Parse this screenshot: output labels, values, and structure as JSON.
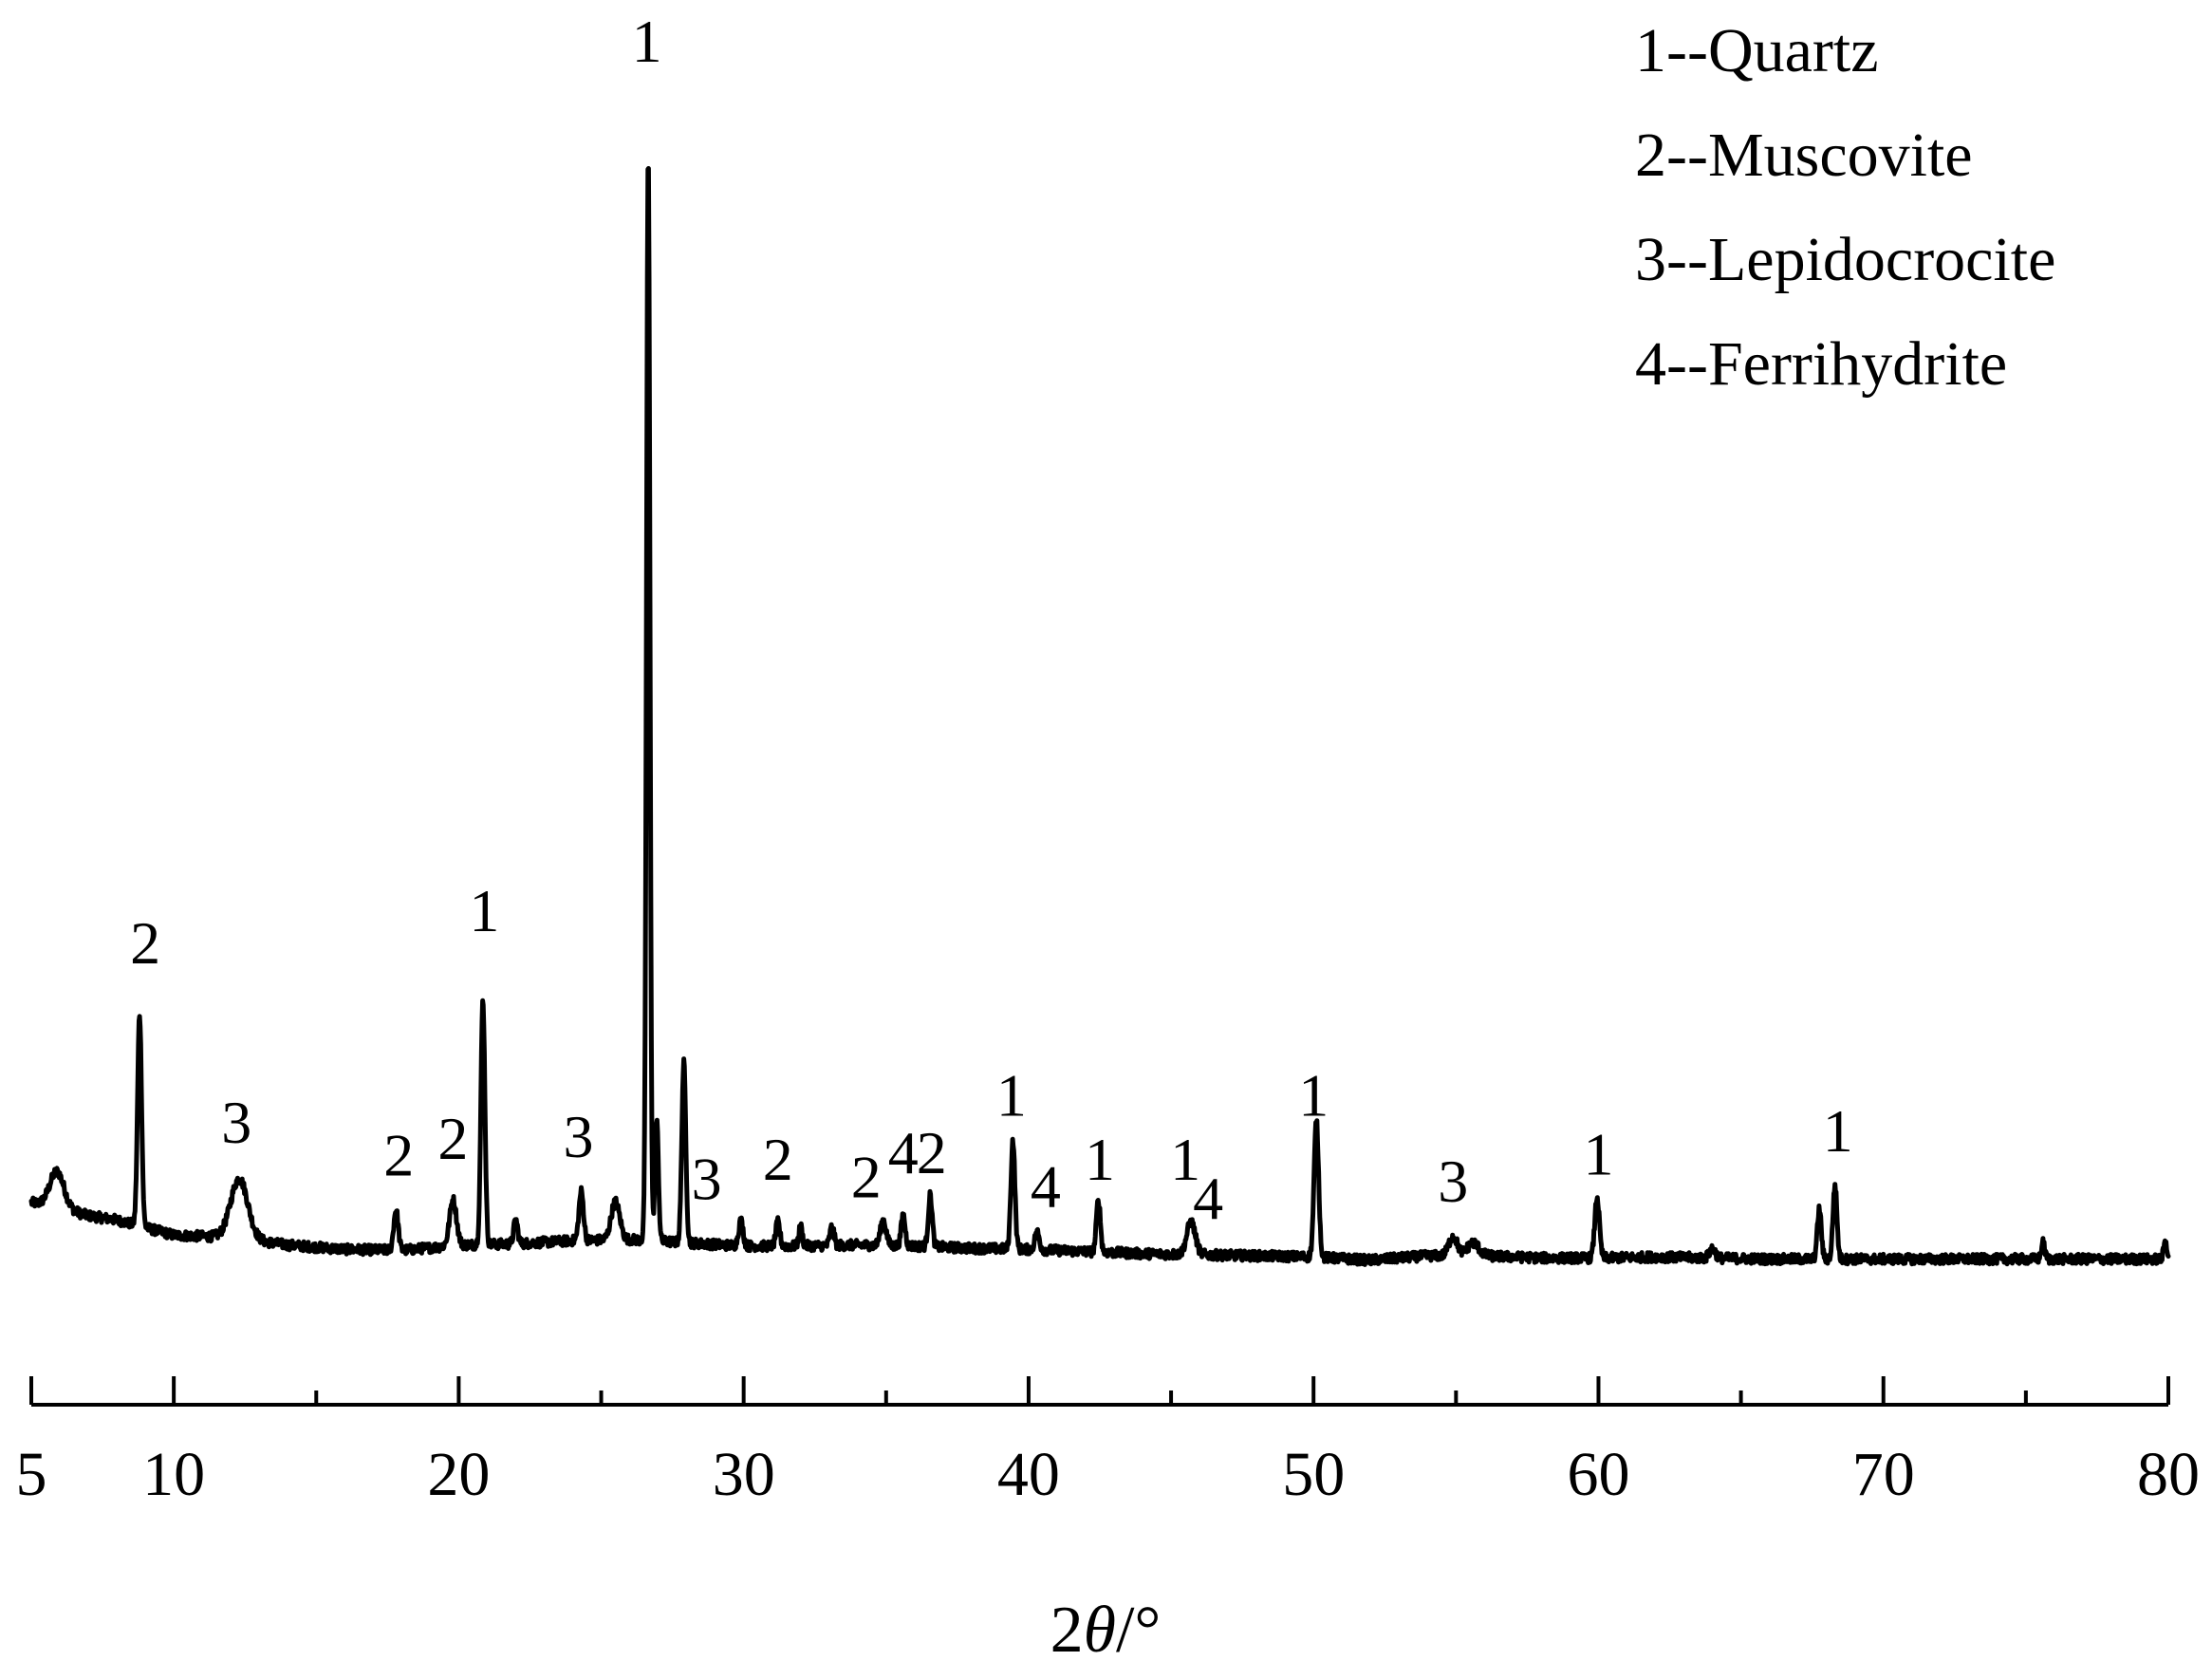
{
  "chart_data": {
    "type": "line",
    "title": "",
    "xlabel_prefix": "2",
    "xlabel_symbol": "θ",
    "xlabel_unit": "/°",
    "ylabel": "",
    "xlim": [
      5,
      80
    ],
    "ylim": [
      0,
      100
    ],
    "x_ticks_major": [
      "5",
      "10",
      "20",
      "30",
      "40",
      "50",
      "60",
      "70",
      "80"
    ],
    "x_tick_values": [
      5,
      10,
      20,
      30,
      40,
      50,
      60,
      70,
      80
    ],
    "legend": [
      "1--Quartz",
      "2--Muscovite",
      "3--Lepidocrocite",
      "4--Ferrihydrite"
    ],
    "legend_position": "top-right",
    "grid": false,
    "series_color": "#000000",
    "baseline": [
      [
        5,
        5.5
      ],
      [
        6,
        5.0
      ],
      [
        7,
        4.3
      ],
      [
        8,
        3.9
      ],
      [
        9,
        3.2
      ],
      [
        10,
        2.5
      ],
      [
        12,
        2.3
      ],
      [
        14,
        1.6
      ],
      [
        16,
        1.2
      ],
      [
        18,
        1.1
      ],
      [
        20,
        1.6
      ],
      [
        22,
        1.7
      ],
      [
        24,
        2.0
      ],
      [
        26,
        2.1
      ],
      [
        28,
        1.8
      ],
      [
        30,
        1.5
      ],
      [
        32,
        1.5
      ],
      [
        34,
        1.6
      ],
      [
        36,
        1.5
      ],
      [
        38,
        1.3
      ],
      [
        40,
        1.2
      ],
      [
        42,
        1.0
      ],
      [
        44,
        0.8
      ],
      [
        46,
        0.7
      ],
      [
        48,
        0.6
      ],
      [
        50,
        0.5
      ],
      [
        52,
        0.2
      ],
      [
        54,
        0.6
      ],
      [
        56,
        0.6
      ],
      [
        58,
        0.4
      ],
      [
        60,
        0.4
      ],
      [
        62,
        0.5
      ],
      [
        64,
        0.4
      ],
      [
        66,
        0.3
      ],
      [
        68,
        0.3
      ],
      [
        70,
        0.3
      ],
      [
        72,
        0.3
      ],
      [
        74,
        0.3
      ],
      [
        76,
        0.3
      ],
      [
        78,
        0.3
      ],
      [
        80,
        0.3
      ]
    ],
    "peaks": [
      {
        "x": 5.9,
        "h": 3.3,
        "w": 0.25
      },
      {
        "x": 8.8,
        "h": 19.5,
        "w": 0.07
      },
      {
        "x": 12.3,
        "h": 5.5,
        "w": 0.3
      },
      {
        "x": 17.8,
        "h": 3.7,
        "w": 0.08
      },
      {
        "x": 19.8,
        "h": 4.2,
        "w": 0.12
      },
      {
        "x": 20.85,
        "h": 22.5,
        "w": 0.07
      },
      {
        "x": 22.0,
        "h": 2.2,
        "w": 0.07
      },
      {
        "x": 24.3,
        "h": 4.5,
        "w": 0.08
      },
      {
        "x": 25.5,
        "h": 3.5,
        "w": 0.15
      },
      {
        "x": 26.65,
        "h": 100.0,
        "w": 0.06
      },
      {
        "x": 26.95,
        "h": 11.0,
        "w": 0.06
      },
      {
        "x": 27.9,
        "h": 16.5,
        "w": 0.07
      },
      {
        "x": 29.9,
        "h": 2.3,
        "w": 0.08
      },
      {
        "x": 31.2,
        "h": 2.2,
        "w": 0.07
      },
      {
        "x": 32.0,
        "h": 1.8,
        "w": 0.06
      },
      {
        "x": 33.1,
        "h": 1.7,
        "w": 0.07
      },
      {
        "x": 34.9,
        "h": 2.3,
        "w": 0.1
      },
      {
        "x": 35.6,
        "h": 2.8,
        "w": 0.07
      },
      {
        "x": 36.55,
        "h": 4.7,
        "w": 0.07
      },
      {
        "x": 39.45,
        "h": 10.0,
        "w": 0.07
      },
      {
        "x": 40.3,
        "h": 1.6,
        "w": 0.08
      },
      {
        "x": 42.45,
        "h": 4.8,
        "w": 0.07
      },
      {
        "x": 45.7,
        "h": 3.0,
        "w": 0.15
      },
      {
        "x": 50.1,
        "h": 12.5,
        "w": 0.08
      },
      {
        "x": 54.9,
        "h": 1.8,
        "w": 0.15
      },
      {
        "x": 55.6,
        "h": 1.2,
        "w": 0.2
      },
      {
        "x": 59.95,
        "h": 5.6,
        "w": 0.08
      },
      {
        "x": 64.0,
        "h": 0.9,
        "w": 0.1
      },
      {
        "x": 67.75,
        "h": 4.6,
        "w": 0.07
      },
      {
        "x": 68.3,
        "h": 6.8,
        "w": 0.07
      },
      {
        "x": 75.6,
        "h": 1.5,
        "w": 0.06
      },
      {
        "x": 79.9,
        "h": 1.6,
        "w": 0.06
      }
    ],
    "annotations": [
      {
        "label": "2",
        "x": 9.0,
        "y": 27.5
      },
      {
        "label": "3",
        "x": 12.2,
        "y": 11.0
      },
      {
        "label": "2",
        "x": 17.9,
        "y": 8.0
      },
      {
        "label": "2",
        "x": 19.8,
        "y": 9.5
      },
      {
        "label": "1",
        "x": 20.9,
        "y": 30.5
      },
      {
        "label": "3",
        "x": 24.2,
        "y": 9.7
      },
      {
        "label": "1",
        "x": 26.6,
        "y": 110.5
      },
      {
        "label": "3",
        "x": 28.7,
        "y": 5.8
      },
      {
        "label": "2",
        "x": 31.2,
        "y": 7.6
      },
      {
        "label": "2",
        "x": 34.3,
        "y": 6.0
      },
      {
        "label": "4",
        "x": 35.6,
        "y": 8.2
      },
      {
        "label": "2",
        "x": 36.6,
        "y": 8.2
      },
      {
        "label": "1",
        "x": 39.4,
        "y": 13.5
      },
      {
        "label": "4",
        "x": 40.6,
        "y": 5.1
      },
      {
        "label": "1",
        "x": 42.5,
        "y": 7.6
      },
      {
        "label": "1",
        "x": 45.5,
        "y": 7.6
      },
      {
        "label": "4",
        "x": 46.3,
        "y": 4.0
      },
      {
        "label": "1",
        "x": 50.0,
        "y": 13.5
      },
      {
        "label": "3",
        "x": 54.9,
        "y": 5.6
      },
      {
        "label": "1",
        "x": 60.0,
        "y": 8.1
      },
      {
        "label": "1",
        "x": 68.4,
        "y": 10.2
      }
    ]
  }
}
